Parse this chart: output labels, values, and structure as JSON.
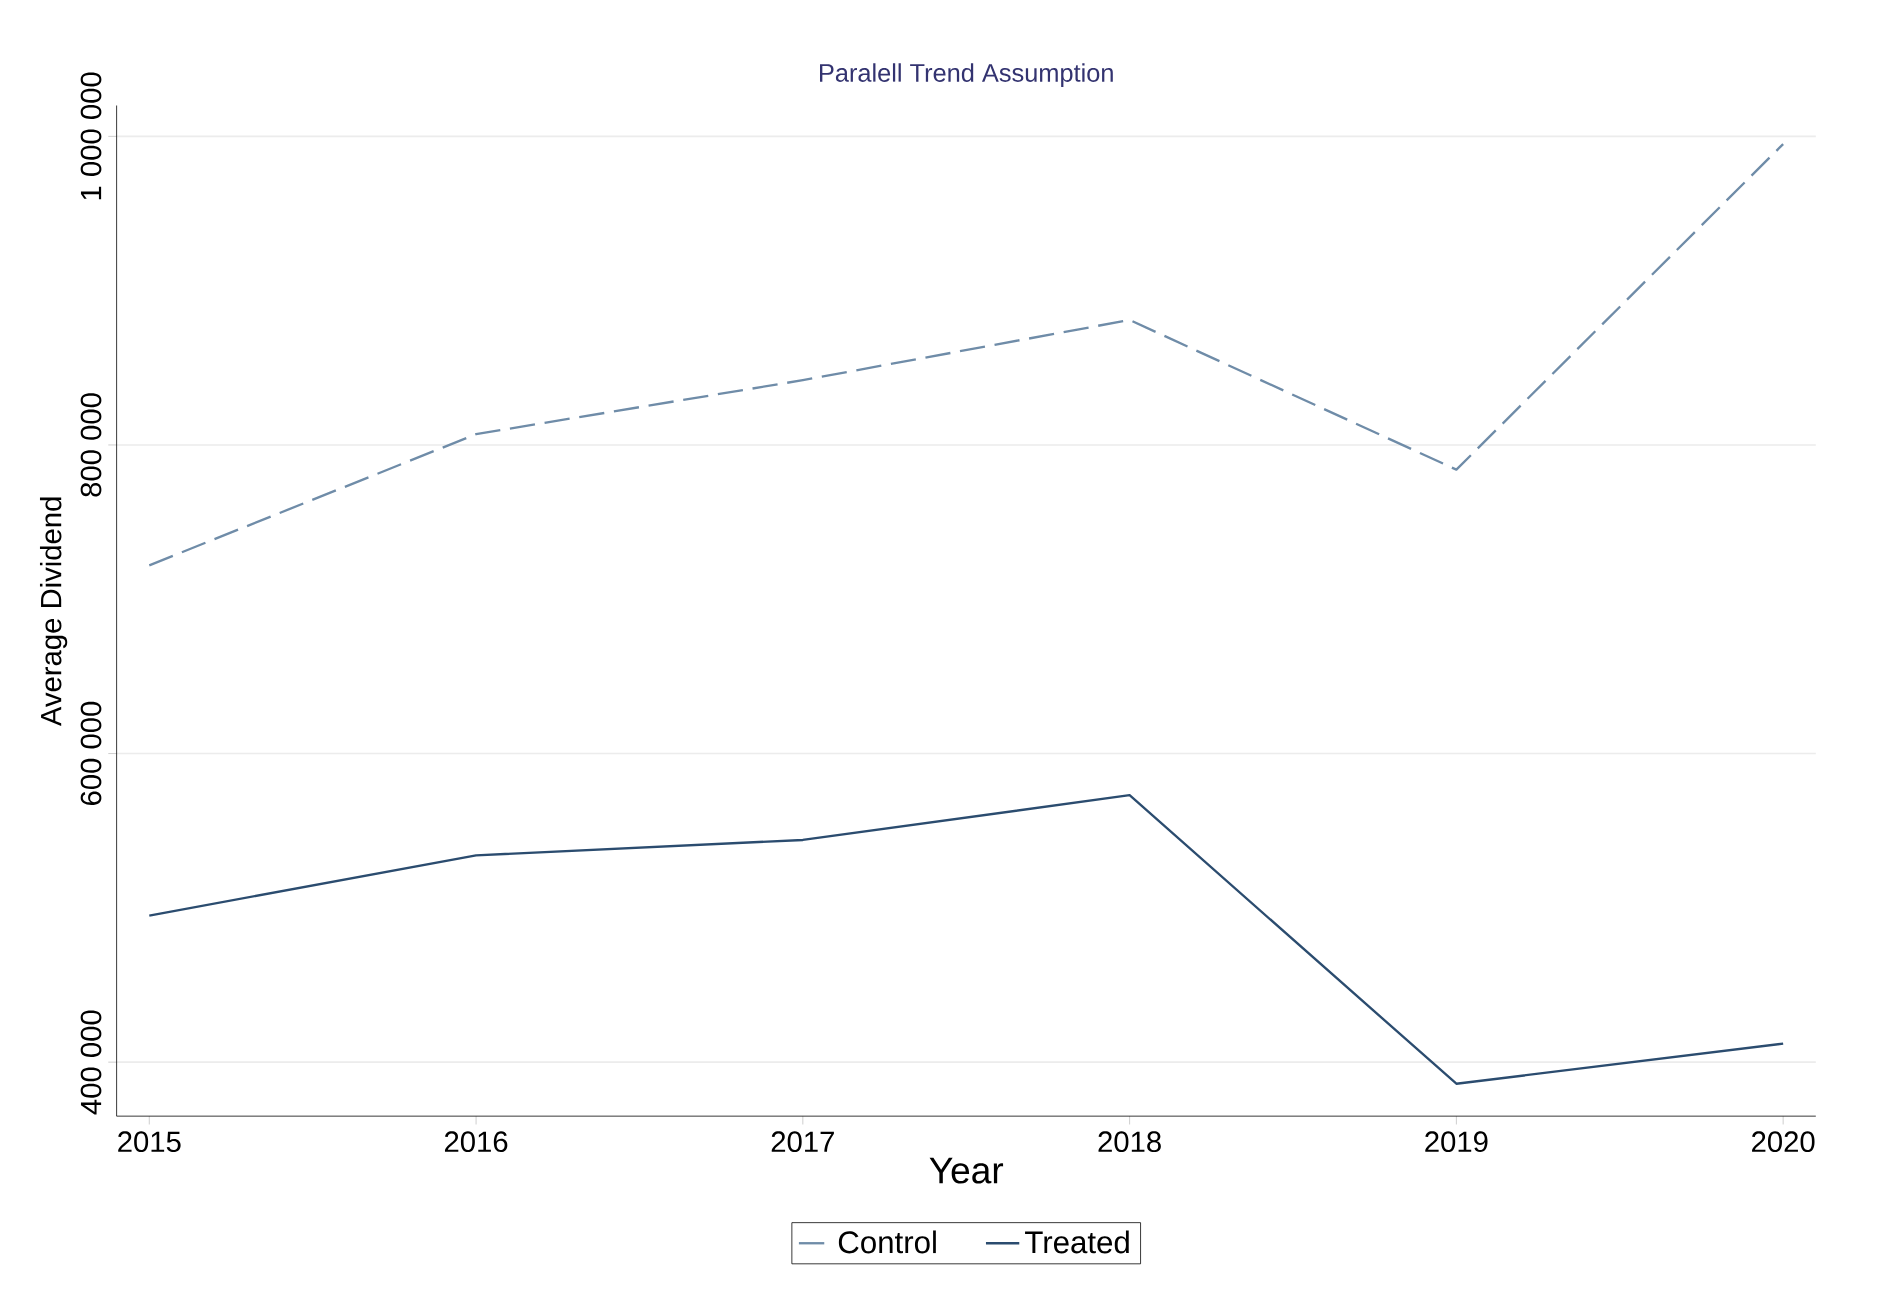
{
  "chart_data": {
    "type": "line",
    "title": "Paralell Trend Assumption",
    "xlabel": "Year",
    "ylabel": "Average Dividend",
    "x": [
      2015,
      2016,
      2017,
      2018,
      2019,
      2020
    ],
    "series": [
      {
        "name": "Control",
        "color": "#6f8ca8",
        "line_style": "dashed",
        "values": [
          722000,
          807000,
          842000,
          881000,
          784000,
          995000
        ]
      },
      {
        "name": "Treated",
        "color": "#2b4c6f",
        "line_style": "solid",
        "values": [
          495000,
          534000,
          544000,
          573000,
          386000,
          412000
        ]
      }
    ],
    "xlim": [
      2014.9,
      2020.1
    ],
    "ylim": [
      365000,
      1020000
    ],
    "xticks": [
      2015,
      2016,
      2017,
      2018,
      2019,
      2020
    ],
    "yticks": [
      {
        "value": 400000,
        "label": "400 000"
      },
      {
        "value": 600000,
        "label": "600 000"
      },
      {
        "value": 800000,
        "label": "800 000"
      },
      {
        "value": 1000000,
        "label": "1 000 000"
      }
    ],
    "grid": "y",
    "legend": "bottom",
    "marker": "none"
  }
}
